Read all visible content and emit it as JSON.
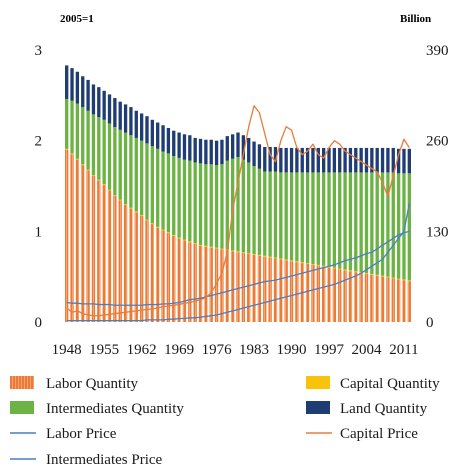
{
  "chart_data": {
    "type": "bar",
    "left_axis_unit": "2005=1",
    "right_axis_unit": "Billion",
    "years": [
      1948,
      1949,
      1950,
      1951,
      1952,
      1953,
      1954,
      1955,
      1956,
      1957,
      1958,
      1959,
      1960,
      1961,
      1962,
      1963,
      1964,
      1965,
      1966,
      1967,
      1968,
      1969,
      1970,
      1971,
      1972,
      1973,
      1974,
      1975,
      1976,
      1977,
      1978,
      1979,
      1980,
      1981,
      1982,
      1983,
      1984,
      1985,
      1986,
      1987,
      1988,
      1989,
      1990,
      1991,
      1992,
      1993,
      1994,
      1995,
      1996,
      1997,
      1998,
      1999,
      2000,
      2001,
      2002,
      2003,
      2004,
      2005,
      2006,
      2007,
      2008,
      2009,
      2010,
      2011,
      2012
    ],
    "x_tick_labels": [
      "1948",
      "1955",
      "1962",
      "1969",
      "1976",
      "1983",
      "1990",
      "1997",
      "2004",
      "2011"
    ],
    "left_ylim": [
      0,
      3
    ],
    "left_y_ticks": [
      "0",
      "1",
      "2",
      "3"
    ],
    "right_ylim": [
      0,
      390
    ],
    "right_y_ticks": [
      "0",
      "130",
      "260",
      "390"
    ],
    "stacked_series": [
      {
        "name": "Labor Quantity",
        "color": "#ec7b3a",
        "axis": "left",
        "values": [
          1.9,
          1.85,
          1.79,
          1.73,
          1.67,
          1.61,
          1.56,
          1.51,
          1.45,
          1.39,
          1.34,
          1.29,
          1.25,
          1.21,
          1.17,
          1.12,
          1.08,
          1.04,
          1.01,
          0.98,
          0.95,
          0.92,
          0.9,
          0.88,
          0.86,
          0.84,
          0.83,
          0.82,
          0.81,
          0.8,
          0.79,
          0.78,
          0.77,
          0.76,
          0.75,
          0.74,
          0.73,
          0.72,
          0.71,
          0.7,
          0.69,
          0.68,
          0.67,
          0.66,
          0.65,
          0.64,
          0.63,
          0.62,
          0.61,
          0.6,
          0.59,
          0.58,
          0.57,
          0.56,
          0.55,
          0.54,
          0.53,
          0.52,
          0.51,
          0.5,
          0.49,
          0.48,
          0.47,
          0.46,
          0.45
        ]
      },
      {
        "name": "Capital Quantity",
        "color": "#f9c30a",
        "axis": "left",
        "values": [
          0.01,
          0.01,
          0.01,
          0.01,
          0.01,
          0.01,
          0.01,
          0.01,
          0.01,
          0.01,
          0.01,
          0.01,
          0.01,
          0.01,
          0.01,
          0.01,
          0.01,
          0.01,
          0.01,
          0.01,
          0.01,
          0.01,
          0.01,
          0.01,
          0.01,
          0.01,
          0.01,
          0.01,
          0.01,
          0.01,
          0.01,
          0.01,
          0.01,
          0.01,
          0.01,
          0.01,
          0.01,
          0.01,
          0.01,
          0.01,
          0.01,
          0.01,
          0.01,
          0.01,
          0.01,
          0.01,
          0.01,
          0.01,
          0.01,
          0.01,
          0.01,
          0.01,
          0.01,
          0.01,
          0.01,
          0.01,
          0.01,
          0.01,
          0.01,
          0.01,
          0.01,
          0.01,
          0.01,
          0.01,
          0.01
        ]
      },
      {
        "name": "Intermediates Quantity",
        "color": "#6cb244",
        "axis": "left",
        "values": [
          0.55,
          0.58,
          0.61,
          0.63,
          0.65,
          0.67,
          0.69,
          0.71,
          0.73,
          0.75,
          0.77,
          0.79,
          0.8,
          0.81,
          0.82,
          0.84,
          0.85,
          0.86,
          0.86,
          0.87,
          0.87,
          0.88,
          0.88,
          0.89,
          0.89,
          0.9,
          0.9,
          0.91,
          0.91,
          0.93,
          0.98,
          1.01,
          1.04,
          1.02,
          1.0,
          0.97,
          0.95,
          0.93,
          0.94,
          0.95,
          0.95,
          0.96,
          0.97,
          0.98,
          0.99,
          1.0,
          1.01,
          1.02,
          1.03,
          1.04,
          1.05,
          1.06,
          1.07,
          1.08,
          1.09,
          1.1,
          1.11,
          1.12,
          1.13,
          1.14,
          1.15,
          1.16,
          1.16,
          1.17,
          1.18
        ]
      },
      {
        "name": "Land Quantity",
        "color": "#1f3c73",
        "axis": "left",
        "values": [
          0.37,
          0.36,
          0.35,
          0.34,
          0.34,
          0.33,
          0.33,
          0.32,
          0.32,
          0.32,
          0.31,
          0.31,
          0.31,
          0.3,
          0.3,
          0.3,
          0.29,
          0.29,
          0.29,
          0.28,
          0.28,
          0.28,
          0.28,
          0.28,
          0.27,
          0.27,
          0.27,
          0.27,
          0.27,
          0.27,
          0.27,
          0.27,
          0.27,
          0.27,
          0.27,
          0.27,
          0.27,
          0.27,
          0.27,
          0.27,
          0.27,
          0.27,
          0.27,
          0.27,
          0.27,
          0.27,
          0.27,
          0.27,
          0.27,
          0.27,
          0.27,
          0.27,
          0.27,
          0.27,
          0.27,
          0.27,
          0.27,
          0.27,
          0.27,
          0.27,
          0.27,
          0.27,
          0.27,
          0.27,
          0.27
        ]
      }
    ],
    "line_series": [
      {
        "name": "Labor Price",
        "color": "#4a7fc4",
        "axis": "right",
        "values": [
          28,
          27,
          27,
          26,
          26,
          26,
          25,
          25,
          25,
          24,
          24,
          24,
          24,
          24,
          24,
          25,
          25,
          25,
          26,
          26,
          27,
          28,
          30,
          32,
          33,
          34,
          36,
          38,
          40,
          42,
          44,
          46,
          48,
          50,
          52,
          54,
          56,
          58,
          59,
          60,
          62,
          64,
          66,
          68,
          70,
          72,
          74,
          76,
          78,
          80,
          82,
          85,
          88,
          90,
          92,
          95,
          98,
          100,
          105,
          110,
          115,
          120,
          125,
          128,
          130
        ]
      },
      {
        "name": "Capital Price",
        "color": "#ec7b3a",
        "axis": "right",
        "values": [
          20,
          14,
          16,
          12,
          10,
          9,
          9,
          10,
          11,
          12,
          13,
          14,
          15,
          16,
          17,
          18,
          19,
          20,
          22,
          23,
          24,
          25,
          27,
          28,
          30,
          32,
          35,
          42,
          55,
          70,
          100,
          160,
          200,
          240,
          280,
          310,
          300,
          270,
          240,
          230,
          260,
          280,
          275,
          250,
          240,
          245,
          255,
          240,
          235,
          250,
          260,
          255,
          245,
          240,
          235,
          230,
          225,
          220,
          215,
          200,
          180,
          210,
          240,
          262,
          250
        ]
      },
      {
        "name": "Intermediates Price",
        "color": "#4a7fc4",
        "axis": "right",
        "values": [
          2,
          2,
          2,
          2,
          2,
          2,
          2,
          2,
          2,
          2,
          2,
          2,
          2,
          2,
          2,
          3,
          3,
          3,
          3,
          4,
          4,
          5,
          5,
          6,
          6,
          7,
          8,
          9,
          10,
          12,
          14,
          16,
          18,
          20,
          22,
          24,
          26,
          28,
          30,
          32,
          34,
          36,
          38,
          40,
          42,
          44,
          46,
          48,
          50,
          52,
          54,
          57,
          60,
          63,
          66,
          70,
          75,
          80,
          85,
          90,
          100,
          110,
          120,
          130,
          170
        ]
      }
    ],
    "grid": false,
    "legend_position": "bottom"
  },
  "legend": [
    {
      "label": "Labor Quantity",
      "color": "#ec7b3a",
      "kind": "patch"
    },
    {
      "label": "Capital Quantity",
      "color": "#f9c30a",
      "kind": "patch"
    },
    {
      "label": "Intermediates Quantity",
      "color": "#6cb244",
      "kind": "patch"
    },
    {
      "label": "Land Quantity",
      "color": "#1f3c73",
      "kind": "patch"
    },
    {
      "label": "Labor Price",
      "color": "#4a7fc4",
      "kind": "line"
    },
    {
      "label": "Capital Price",
      "color": "#ec7b3a",
      "kind": "line"
    },
    {
      "label": "Intermediates Price",
      "color": "#4a7fc4",
      "kind": "line"
    }
  ]
}
